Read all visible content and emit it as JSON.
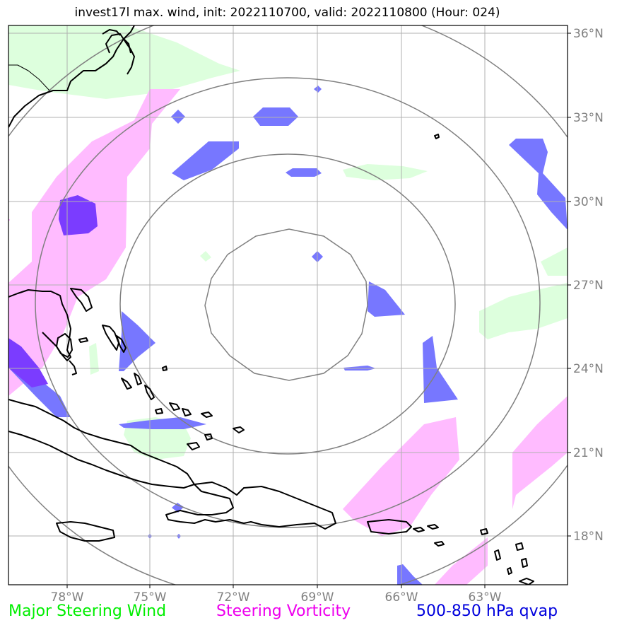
{
  "title": "invest17l max. wind, init: 2022110700, valid: 2022110800 (Hour: 024)",
  "legend": [
    {
      "label": "Major Steering Wind",
      "color": "#00ee00"
    },
    {
      "label": "Steering Vorticity",
      "color": "#ee00ee"
    },
    {
      "label": "500-850 hPa qvap",
      "color": "#0000dd"
    }
  ],
  "lon_labels": [
    "78°W",
    "75°W",
    "72°W",
    "69°W",
    "66°W",
    "63°W"
  ],
  "lat_labels": [
    "36°N",
    "33°N",
    "30°N",
    "27°N",
    "24°N",
    "21°N",
    "18°N"
  ],
  "colors": {
    "wind_fill": "#ddffdd",
    "vorticity_fill": "#ffbbff",
    "qvap_fill": "#7777ff",
    "qvap_dark": "#7b3cff",
    "grid": "#b0b0b0",
    "rings": "#808080",
    "coast": "#000000"
  }
}
